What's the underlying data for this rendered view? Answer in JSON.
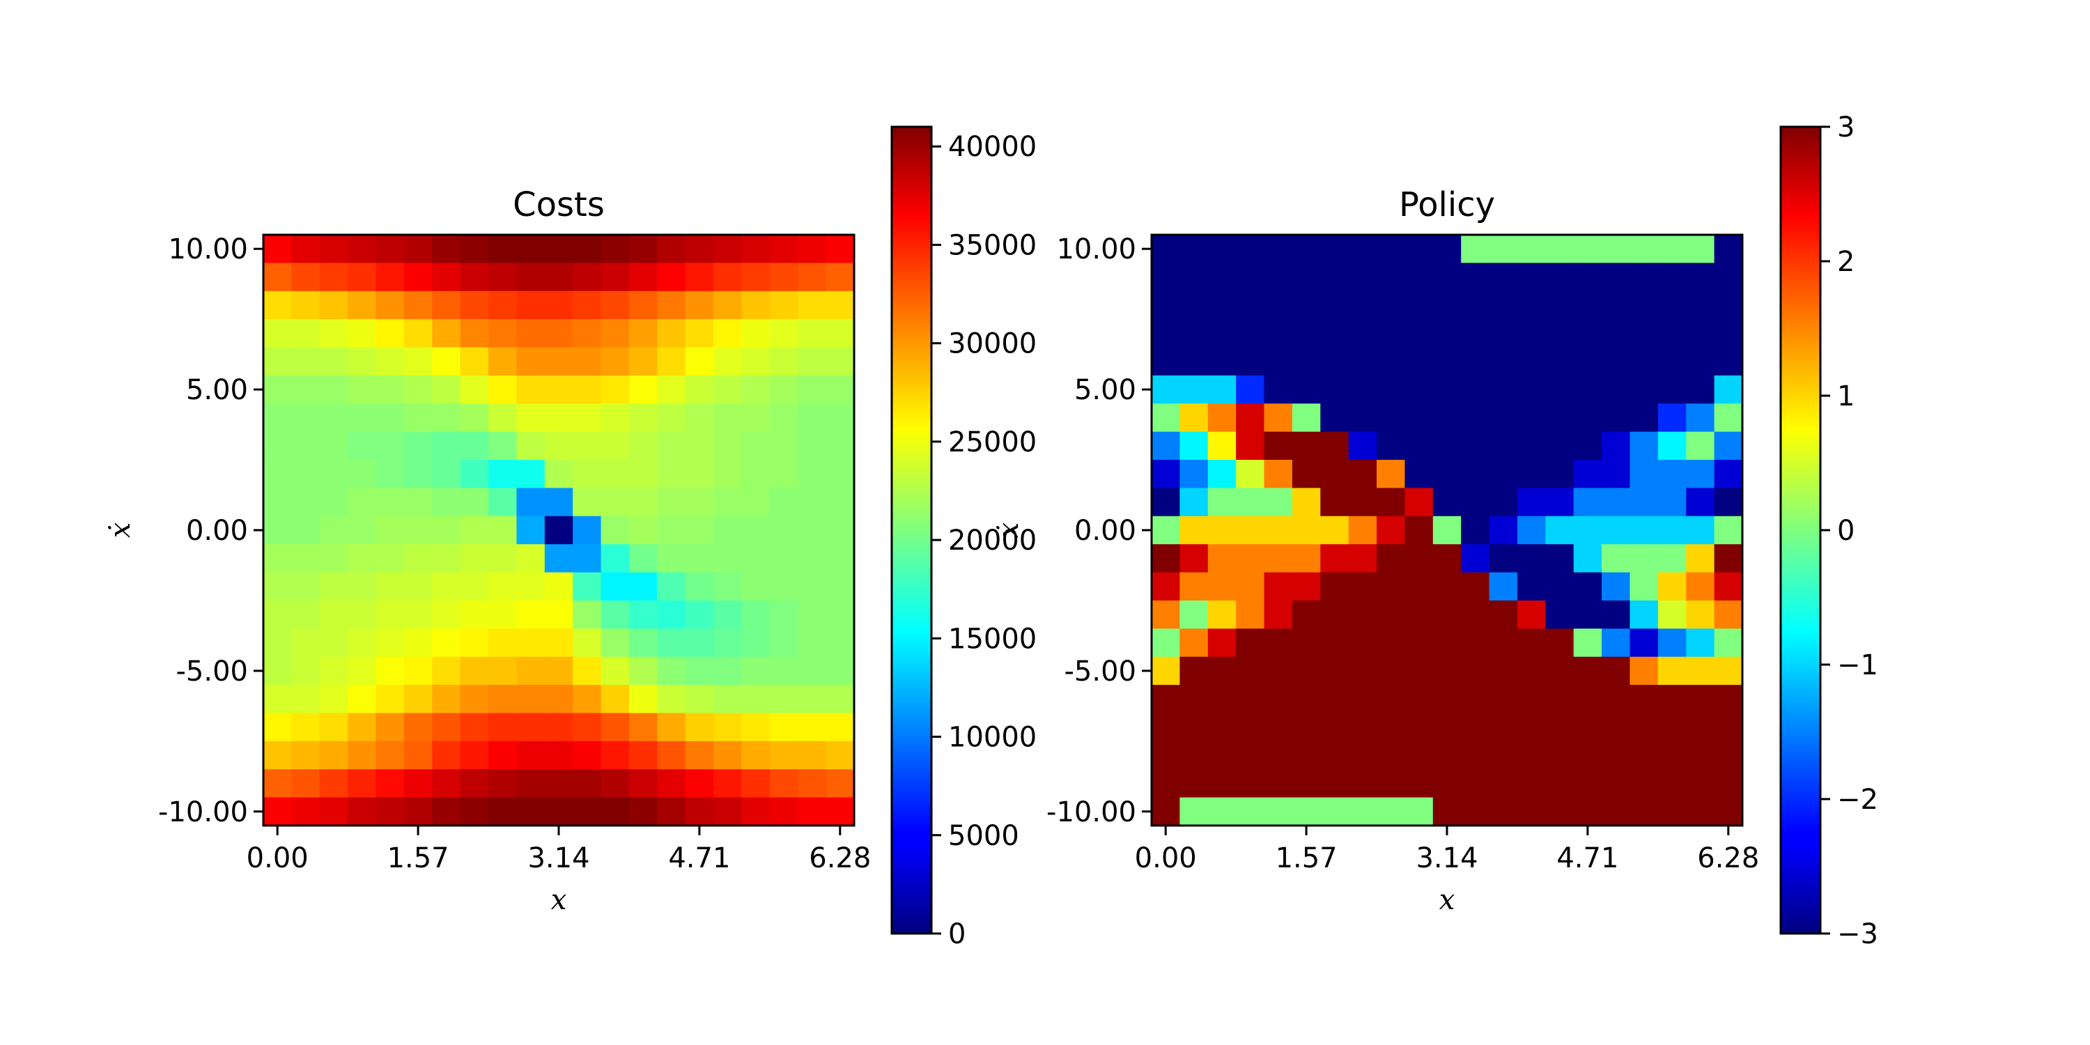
{
  "chart_data": [
    {
      "type": "heatmap",
      "title": "Costs",
      "xlabel": "x",
      "ylabel": "ẋ",
      "xlim": [
        0,
        6.28
      ],
      "ylim": [
        -10,
        10
      ],
      "xticks": [
        0.0,
        1.57,
        3.14,
        4.71,
        6.28
      ],
      "xtick_labels": [
        "0.00",
        "1.57",
        "3.14",
        "4.71",
        "6.28"
      ],
      "yticks": [
        10,
        5,
        0,
        -5,
        -10
      ],
      "ytick_labels": [
        "10.00",
        "5.00",
        "0.00",
        "-5.00",
        "-10.00"
      ],
      "colormap": "jet",
      "colorbar": {
        "min": 0,
        "max": 41000,
        "ticks": [
          0,
          5000,
          10000,
          15000,
          20000,
          25000,
          30000,
          35000,
          40000
        ],
        "tick_labels": [
          "0",
          "5000",
          "10000",
          "15000",
          "20000",
          "25000",
          "30000",
          "35000",
          "40000"
        ]
      },
      "grid": {
        "cols": 21,
        "rows": 21,
        "row_order": "top-to-bottom (ẋ = 10 to -10)",
        "values": [
          [
            36000,
            37000,
            37500,
            38000,
            38500,
            39000,
            40000,
            40500,
            41000,
            41500,
            41500,
            41000,
            40500,
            40000,
            39000,
            38500,
            38000,
            37500,
            37000,
            36500,
            36000
          ],
          [
            32000,
            33000,
            33500,
            34000,
            35000,
            36000,
            37000,
            38000,
            38500,
            39000,
            39000,
            38500,
            38000,
            37000,
            36000,
            35000,
            34000,
            33500,
            33000,
            32500,
            32000
          ],
          [
            27000,
            27500,
            28000,
            29000,
            30000,
            31000,
            32000,
            33000,
            33500,
            34000,
            34000,
            33500,
            33000,
            32000,
            31000,
            30000,
            29000,
            28000,
            27500,
            27000,
            27000
          ],
          [
            24000,
            24000,
            24500,
            25000,
            26000,
            27000,
            29000,
            30500,
            31000,
            31500,
            31500,
            31000,
            30500,
            29500,
            28000,
            27000,
            26000,
            25000,
            24500,
            24000,
            24000
          ],
          [
            23000,
            23000,
            23000,
            23500,
            24000,
            24500,
            25500,
            27000,
            29000,
            30000,
            30000,
            30000,
            29500,
            28500,
            27000,
            25500,
            24500,
            24000,
            23500,
            23000,
            23000
          ],
          [
            21500,
            21500,
            21500,
            22000,
            22000,
            22500,
            23000,
            24500,
            26000,
            27000,
            27000,
            27000,
            26500,
            25500,
            24500,
            23500,
            23000,
            22500,
            22000,
            21500,
            21500
          ],
          [
            21000,
            21000,
            21000,
            21000,
            21000,
            21500,
            21500,
            22000,
            23500,
            24500,
            24500,
            24500,
            24000,
            23500,
            23000,
            22500,
            22000,
            22000,
            21500,
            21000,
            21000
          ],
          [
            21000,
            21000,
            21000,
            20500,
            20500,
            20000,
            19500,
            19500,
            20500,
            23000,
            23500,
            23500,
            23500,
            23000,
            22500,
            22500,
            22000,
            21500,
            21500,
            21000,
            21000
          ],
          [
            21000,
            21000,
            21000,
            21000,
            20500,
            20000,
            19500,
            18000,
            16000,
            16000,
            22500,
            23000,
            23000,
            23000,
            22500,
            22500,
            22000,
            21500,
            21500,
            21000,
            21000
          ],
          [
            21000,
            21000,
            21000,
            21500,
            21500,
            21500,
            21000,
            21000,
            19000,
            11000,
            11000,
            22500,
            22500,
            22500,
            22000,
            22000,
            21500,
            21500,
            21000,
            21000,
            21000
          ],
          [
            21000,
            21000,
            21500,
            21500,
            22000,
            22000,
            22000,
            22500,
            22500,
            12000,
            0,
            11000,
            21500,
            22000,
            21500,
            21500,
            21000,
            21000,
            21000,
            21000,
            21000
          ],
          [
            22000,
            22000,
            22000,
            22500,
            22500,
            23000,
            23000,
            23500,
            23500,
            24000,
            11500,
            11500,
            17000,
            20000,
            21000,
            21000,
            21000,
            21000,
            21000,
            21000,
            21000
          ],
          [
            22500,
            22500,
            23000,
            23000,
            23500,
            23500,
            24000,
            24000,
            24500,
            24500,
            25000,
            18000,
            15000,
            15000,
            18500,
            20000,
            20500,
            21000,
            21000,
            21000,
            21000
          ],
          [
            23000,
            23000,
            23500,
            23500,
            24000,
            24000,
            24500,
            25000,
            25000,
            25500,
            25500,
            21500,
            19000,
            17500,
            17000,
            18000,
            19000,
            20000,
            20500,
            21000,
            21000
          ],
          [
            23000,
            23500,
            23500,
            24000,
            24500,
            25000,
            25500,
            26000,
            26500,
            26500,
            26500,
            24000,
            21500,
            20000,
            19000,
            19000,
            19500,
            20000,
            20500,
            21000,
            21000
          ],
          [
            23000,
            23500,
            24000,
            24500,
            25500,
            26000,
            27000,
            28000,
            28000,
            28500,
            28500,
            26500,
            24000,
            22500,
            21000,
            20500,
            20500,
            21000,
            21000,
            21000,
            21000
          ],
          [
            24000,
            24000,
            24500,
            25500,
            26500,
            27500,
            29000,
            30000,
            30500,
            30500,
            30500,
            29500,
            27500,
            25000,
            23500,
            23000,
            22500,
            22500,
            22500,
            22500,
            22500
          ],
          [
            26000,
            26500,
            27000,
            28500,
            30000,
            31500,
            32500,
            33500,
            34000,
            34000,
            34000,
            33500,
            32500,
            31000,
            29000,
            27500,
            27000,
            26500,
            26000,
            26000,
            26000
          ],
          [
            28000,
            28500,
            29000,
            30000,
            31000,
            32000,
            34000,
            35000,
            36000,
            36500,
            36500,
            36000,
            35000,
            34000,
            32500,
            31000,
            30000,
            29000,
            28500,
            28500,
            28000
          ],
          [
            32000,
            32500,
            33500,
            34500,
            35500,
            36500,
            37500,
            38500,
            39000,
            39500,
            39500,
            39500,
            39000,
            38000,
            37000,
            36000,
            35000,
            34000,
            33000,
            32500,
            32000
          ],
          [
            36000,
            36500,
            37000,
            38000,
            38500,
            39000,
            40000,
            40500,
            41000,
            41500,
            41500,
            41500,
            41000,
            40500,
            39500,
            38500,
            38000,
            37000,
            36500,
            36000,
            36000
          ]
        ]
      }
    },
    {
      "type": "heatmap",
      "title": "Policy",
      "xlabel": "x",
      "ylabel": "ẋ",
      "xlim": [
        0,
        6.28
      ],
      "ylim": [
        -10,
        10
      ],
      "xticks": [
        0.0,
        1.57,
        3.14,
        4.71,
        6.28
      ],
      "xtick_labels": [
        "0.00",
        "1.57",
        "3.14",
        "4.71",
        "6.28"
      ],
      "yticks": [
        10,
        5,
        0,
        -5,
        -10
      ],
      "ytick_labels": [
        "10.00",
        "5.00",
        "0.00",
        "-5.00",
        "-10.00"
      ],
      "colormap": "jet",
      "colorbar": {
        "min": -3,
        "max": 3,
        "ticks": [
          -3,
          -2,
          -1,
          0,
          1,
          2,
          3
        ],
        "tick_labels": [
          "−3",
          "−2",
          "−1",
          "0",
          "1",
          "2",
          "3"
        ]
      },
      "grid": {
        "cols": 21,
        "rows": 21,
        "row_order": "top-to-bottom (ẋ = 10 to -10)",
        "values": [
          [
            -3,
            -3,
            -3,
            -3,
            -3,
            -3,
            -3,
            -3,
            -3,
            -3,
            -3,
            0,
            0,
            0,
            0,
            0,
            0,
            0,
            0,
            0,
            -3
          ],
          [
            -3,
            -3,
            -3,
            -3,
            -3,
            -3,
            -3,
            -3,
            -3,
            -3,
            -3,
            -3,
            -3,
            -3,
            -3,
            -3,
            -3,
            -3,
            -3,
            -3,
            -3
          ],
          [
            -3,
            -3,
            -3,
            -3,
            -3,
            -3,
            -3,
            -3,
            -3,
            -3,
            -3,
            -3,
            -3,
            -3,
            -3,
            -3,
            -3,
            -3,
            -3,
            -3,
            -3
          ],
          [
            -3,
            -3,
            -3,
            -3,
            -3,
            -3,
            -3,
            -3,
            -3,
            -3,
            -3,
            -3,
            -3,
            -3,
            -3,
            -3,
            -3,
            -3,
            -3,
            -3,
            -3
          ],
          [
            -3,
            -3,
            -3,
            -3,
            -3,
            -3,
            -3,
            -3,
            -3,
            -3,
            -3,
            -3,
            -3,
            -3,
            -3,
            -3,
            -3,
            -3,
            -3,
            -3,
            -3
          ],
          [
            -1,
            -1,
            -1,
            -2,
            -3,
            -3,
            -3,
            -3,
            -3,
            -3,
            -3,
            -3,
            -3,
            -3,
            -3,
            -3,
            -3,
            -3,
            -3,
            -3,
            -1
          ],
          [
            0,
            1,
            1.5,
            2.5,
            1.5,
            0,
            -3,
            -3,
            -3,
            -3,
            -3,
            -3,
            -3,
            -3,
            -3,
            -3,
            -3,
            -3,
            -2,
            -1.5,
            0
          ],
          [
            -1.5,
            -0.8,
            0.8,
            2.5,
            3,
            3,
            3,
            -2.5,
            -3,
            -3,
            -3,
            -3,
            -3,
            -3,
            -3,
            -3,
            -2.5,
            -1.5,
            -0.8,
            0,
            -1.5
          ],
          [
            -2.5,
            -1.5,
            -0.8,
            0.5,
            1.5,
            3,
            3,
            3,
            1.5,
            -3,
            -3,
            -3,
            -3,
            -3,
            -3,
            -2.5,
            -2.5,
            -1.5,
            -1.5,
            -1.5,
            -2.5
          ],
          [
            -3,
            -1,
            0,
            0,
            0,
            1,
            3,
            3,
            3,
            2.5,
            -3,
            -3,
            -3,
            -2.5,
            -2.5,
            -1.5,
            -1.5,
            -1.5,
            -1.5,
            -2.5,
            -3
          ],
          [
            0,
            1,
            1,
            1,
            1,
            1,
            1,
            1.5,
            2.5,
            3,
            0,
            -3,
            -2.5,
            -1.5,
            -1,
            -1,
            -1,
            -1,
            -1,
            -1,
            0
          ],
          [
            3,
            2.5,
            1.5,
            1.5,
            1.5,
            1.5,
            2.5,
            2.5,
            3,
            3,
            3,
            -2.5,
            -3,
            -3,
            -3,
            -1,
            0,
            0,
            0,
            1,
            3
          ],
          [
            2.5,
            1.5,
            1.5,
            1.5,
            2.5,
            2.5,
            3,
            3,
            3,
            3,
            3,
            3,
            -1.5,
            -3,
            -3,
            -3,
            -1.5,
            0,
            1,
            1.5,
            2.5
          ],
          [
            1.5,
            0,
            1,
            1.5,
            2.5,
            3,
            3,
            3,
            3,
            3,
            3,
            3,
            3,
            2.5,
            -3,
            -3,
            -3,
            -1,
            0.5,
            1,
            1.5
          ],
          [
            0,
            1.5,
            2.5,
            3,
            3,
            3,
            3,
            3,
            3,
            3,
            3,
            3,
            3,
            3,
            3,
            0,
            -1.5,
            -2.5,
            -1.5,
            -1,
            0
          ],
          [
            1,
            3,
            3,
            3,
            3,
            3,
            3,
            3,
            3,
            3,
            3,
            3,
            3,
            3,
            3,
            3,
            3,
            1.5,
            1,
            1,
            1
          ],
          [
            3,
            3,
            3,
            3,
            3,
            3,
            3,
            3,
            3,
            3,
            3,
            3,
            3,
            3,
            3,
            3,
            3,
            3,
            3,
            3,
            3
          ],
          [
            3,
            3,
            3,
            3,
            3,
            3,
            3,
            3,
            3,
            3,
            3,
            3,
            3,
            3,
            3,
            3,
            3,
            3,
            3,
            3,
            3
          ],
          [
            3,
            3,
            3,
            3,
            3,
            3,
            3,
            3,
            3,
            3,
            3,
            3,
            3,
            3,
            3,
            3,
            3,
            3,
            3,
            3,
            3
          ],
          [
            3,
            3,
            3,
            3,
            3,
            3,
            3,
            3,
            3,
            3,
            3,
            3,
            3,
            3,
            3,
            3,
            3,
            3,
            3,
            3,
            3
          ],
          [
            3,
            0,
            0,
            0,
            0,
            0,
            0,
            0,
            0,
            0,
            3,
            3,
            3,
            3,
            3,
            3,
            3,
            3,
            3,
            3,
            3
          ]
        ]
      }
    }
  ]
}
